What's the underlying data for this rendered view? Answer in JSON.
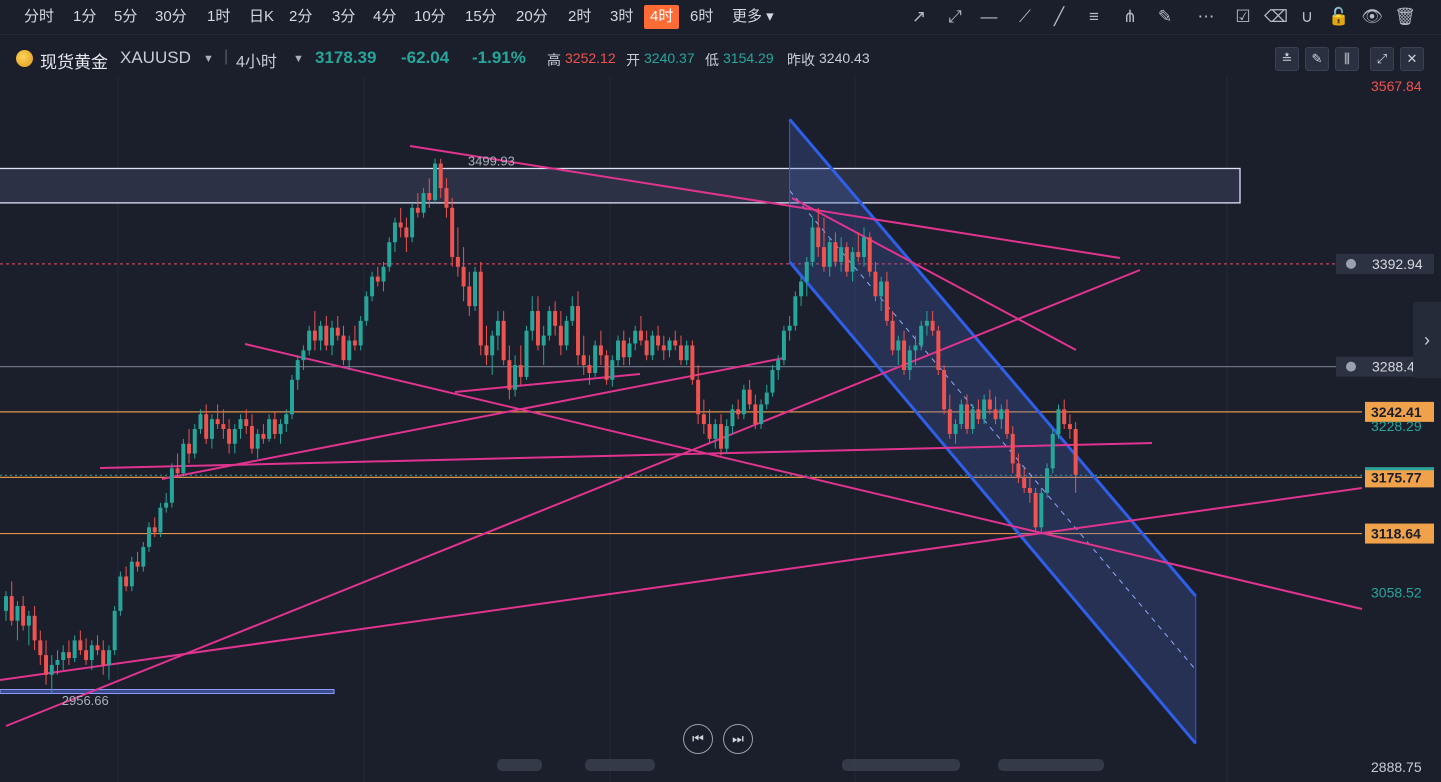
{
  "toolbar": {
    "timeframes": [
      "分时",
      "1分",
      "5分",
      "30分",
      "1时",
      "日K",
      "2分",
      "3分",
      "4分",
      "10分",
      "15分",
      "20分",
      "2时",
      "3时",
      "4时",
      "6时",
      "更多"
    ],
    "active": "4时",
    "tools": [
      "trend-line-icon",
      "ray-line-icon",
      "horizontal-line-icon",
      "polyline-icon",
      "brush-icon",
      "fibonacci-icon",
      "fan-icon",
      "highlighter-icon",
      "more-dots-icon",
      "note-icon",
      "eraser-icon",
      "magnet-icon",
      "lock-icon",
      "eye-icon",
      "trash-icon"
    ]
  },
  "symbol": {
    "name": "现货黄金",
    "code": "XAUUSD",
    "interval": "4小时",
    "price": "3178.39",
    "change": "-62.04",
    "change_pct": "-1.91%",
    "high_label": "高",
    "high": "3252.12",
    "open_label": "开",
    "open": "3240.37",
    "low_label": "低",
    "low": "3154.29",
    "prev_label": "昨收",
    "prev": "3240.43"
  },
  "colors": {
    "up": "#26a69a",
    "down": "#ef5350",
    "pink": "#e0348f",
    "channel": "#2f5fe8",
    "bg": "#1b1e2b"
  },
  "chart_data": {
    "type": "candlestick",
    "symbol": "XAUUSD",
    "interval": "4H",
    "ylim": [
      2870,
      3580
    ],
    "y_axis_labels": [
      {
        "value": 3567.84,
        "text": "3567.84",
        "kind": "top"
      },
      {
        "value": 3392.94,
        "text": "3392.94",
        "kind": "alert"
      },
      {
        "value": 3288.44,
        "text": "3288.44",
        "kind": "alert"
      },
      {
        "value": 3242.41,
        "text": "3242.41",
        "kind": "orange"
      },
      {
        "value": 3228.29,
        "text": "3228.29",
        "kind": "plain"
      },
      {
        "value": 3175.77,
        "text": "3175.77",
        "kind": "orange"
      },
      {
        "value": 3118.64,
        "text": "3118.64",
        "kind": "orange"
      },
      {
        "value": 3058.52,
        "text": "3058.52",
        "kind": "plain"
      },
      {
        "value": 2888.75,
        "text": "2888.75",
        "kind": "bottom"
      }
    ],
    "annotations": [
      {
        "text": "3499.93",
        "x_index": 79,
        "value": 3499.93
      },
      {
        "text": "2956.66",
        "x_index": 8,
        "value": 2956.66
      }
    ],
    "hlines": [
      {
        "value": 3392.94,
        "style": "dotted",
        "color": "#c0455f"
      },
      {
        "value": 3288.44,
        "style": "solid",
        "color": "#6c7182"
      },
      {
        "value": 3242.41,
        "style": "solid",
        "color": "#e0934a"
      },
      {
        "value": 3175.77,
        "style": "solid",
        "color": "#e0934a"
      },
      {
        "value": 3118.64,
        "style": "solid",
        "color": "#e0934a"
      }
    ],
    "candles": [
      [
        3040,
        3060,
        3030,
        3055
      ],
      [
        3055,
        3070,
        3025,
        3030
      ],
      [
        3030,
        3050,
        3010,
        3045
      ],
      [
        3045,
        3055,
        3020,
        3025
      ],
      [
        3025,
        3040,
        3005,
        3035
      ],
      [
        3035,
        3045,
        3000,
        3010
      ],
      [
        3010,
        3020,
        2985,
        2995
      ],
      [
        2995,
        3010,
        2965,
        2975
      ],
      [
        2975,
        2995,
        2956,
        2985
      ],
      [
        2985,
        3000,
        2975,
        2990
      ],
      [
        2990,
        3005,
        2980,
        2998
      ],
      [
        2998,
        3010,
        2985,
        2992
      ],
      [
        2992,
        3015,
        2988,
        3010
      ],
      [
        3010,
        3020,
        2995,
        3000
      ],
      [
        3000,
        3012,
        2985,
        2990
      ],
      [
        2990,
        3010,
        2980,
        3005
      ],
      [
        3005,
        3015,
        2995,
        3000
      ],
      [
        3000,
        3010,
        2975,
        2985
      ],
      [
        2985,
        3005,
        2970,
        3000
      ],
      [
        3000,
        3045,
        2995,
        3040
      ],
      [
        3040,
        3080,
        3035,
        3075
      ],
      [
        3075,
        3085,
        3060,
        3065
      ],
      [
        3065,
        3095,
        3060,
        3090
      ],
      [
        3090,
        3100,
        3080,
        3085
      ],
      [
        3085,
        3110,
        3080,
        3105
      ],
      [
        3105,
        3130,
        3100,
        3125
      ],
      [
        3125,
        3135,
        3115,
        3120
      ],
      [
        3120,
        3150,
        3115,
        3145
      ],
      [
        3145,
        3160,
        3140,
        3150
      ],
      [
        3150,
        3190,
        3145,
        3185
      ],
      [
        3185,
        3200,
        3175,
        3180
      ],
      [
        3180,
        3215,
        3175,
        3210
      ],
      [
        3210,
        3225,
        3190,
        3200
      ],
      [
        3200,
        3230,
        3195,
        3225
      ],
      [
        3225,
        3245,
        3220,
        3240
      ],
      [
        3240,
        3250,
        3210,
        3215
      ],
      [
        3215,
        3240,
        3205,
        3235
      ],
      [
        3235,
        3250,
        3225,
        3230
      ],
      [
        3230,
        3245,
        3215,
        3225
      ],
      [
        3225,
        3235,
        3200,
        3210
      ],
      [
        3210,
        3230,
        3200,
        3225
      ],
      [
        3225,
        3240,
        3215,
        3235
      ],
      [
        3235,
        3245,
        3220,
        3228
      ],
      [
        3228,
        3240,
        3200,
        3205
      ],
      [
        3205,
        3225,
        3195,
        3220
      ],
      [
        3220,
        3230,
        3210,
        3215
      ],
      [
        3215,
        3240,
        3212,
        3235
      ],
      [
        3235,
        3242,
        3215,
        3220
      ],
      [
        3220,
        3235,
        3210,
        3230
      ],
      [
        3230,
        3245,
        3222,
        3240
      ],
      [
        3240,
        3280,
        3235,
        3275
      ],
      [
        3275,
        3300,
        3265,
        3295
      ],
      [
        3295,
        3310,
        3285,
        3305
      ],
      [
        3305,
        3330,
        3300,
        3325
      ],
      [
        3325,
        3345,
        3305,
        3315
      ],
      [
        3315,
        3335,
        3305,
        3330
      ],
      [
        3330,
        3340,
        3305,
        3310
      ],
      [
        3310,
        3335,
        3300,
        3328
      ],
      [
        3328,
        3340,
        3315,
        3320
      ],
      [
        3320,
        3330,
        3290,
        3295
      ],
      [
        3295,
        3320,
        3285,
        3315
      ],
      [
        3315,
        3330,
        3305,
        3310
      ],
      [
        3310,
        3340,
        3305,
        3335
      ],
      [
        3335,
        3365,
        3330,
        3360
      ],
      [
        3360,
        3385,
        3355,
        3380
      ],
      [
        3380,
        3390,
        3370,
        3375
      ],
      [
        3375,
        3395,
        3365,
        3390
      ],
      [
        3390,
        3420,
        3385,
        3415
      ],
      [
        3415,
        3440,
        3405,
        3435
      ],
      [
        3435,
        3450,
        3420,
        3430
      ],
      [
        3430,
        3440,
        3405,
        3420
      ],
      [
        3420,
        3455,
        3415,
        3450
      ],
      [
        3450,
        3465,
        3440,
        3445
      ],
      [
        3445,
        3470,
        3440,
        3465
      ],
      [
        3465,
        3480,
        3450,
        3458
      ],
      [
        3458,
        3500,
        3455,
        3495
      ],
      [
        3495,
        3499.93,
        3460,
        3470
      ],
      [
        3470,
        3480,
        3440,
        3450
      ],
      [
        3450,
        3460,
        3390,
        3400
      ],
      [
        3400,
        3430,
        3380,
        3390
      ],
      [
        3390,
        3410,
        3355,
        3370
      ],
      [
        3370,
        3385,
        3340,
        3350
      ],
      [
        3350,
        3390,
        3345,
        3385
      ],
      [
        3385,
        3395,
        3300,
        3310
      ],
      [
        3310,
        3330,
        3290,
        3300
      ],
      [
        3300,
        3325,
        3280,
        3320
      ],
      [
        3320,
        3345,
        3305,
        3335
      ],
      [
        3335,
        3345,
        3290,
        3295
      ],
      [
        3295,
        3310,
        3255,
        3265
      ],
      [
        3265,
        3300,
        3258,
        3290
      ],
      [
        3290,
        3310,
        3270,
        3278
      ],
      [
        3278,
        3330,
        3275,
        3325
      ],
      [
        3325,
        3360,
        3315,
        3345
      ],
      [
        3345,
        3360,
        3305,
        3310
      ],
      [
        3310,
        3330,
        3290,
        3320
      ],
      [
        3320,
        3350,
        3315,
        3345
      ],
      [
        3345,
        3355,
        3320,
        3330
      ],
      [
        3330,
        3345,
        3300,
        3310
      ],
      [
        3310,
        3340,
        3305,
        3335
      ],
      [
        3335,
        3360,
        3330,
        3350
      ],
      [
        3350,
        3365,
        3290,
        3300
      ],
      [
        3300,
        3320,
        3280,
        3290
      ],
      [
        3290,
        3300,
        3270,
        3282
      ],
      [
        3282,
        3315,
        3278,
        3310
      ],
      [
        3310,
        3325,
        3290,
        3300
      ],
      [
        3300,
        3305,
        3270,
        3275
      ],
      [
        3275,
        3300,
        3268,
        3295
      ],
      [
        3295,
        3320,
        3288,
        3315
      ],
      [
        3315,
        3325,
        3290,
        3298
      ],
      [
        3298,
        3318,
        3290,
        3312
      ],
      [
        3312,
        3330,
        3305,
        3325
      ],
      [
        3325,
        3340,
        3310,
        3315
      ],
      [
        3315,
        3325,
        3295,
        3300
      ],
      [
        3300,
        3325,
        3295,
        3320
      ],
      [
        3320,
        3330,
        3305,
        3310
      ],
      [
        3310,
        3320,
        3295,
        3305
      ],
      [
        3305,
        3318,
        3298,
        3315
      ],
      [
        3315,
        3325,
        3305,
        3310
      ],
      [
        3310,
        3320,
        3290,
        3295
      ],
      [
        3295,
        3315,
        3290,
        3310
      ],
      [
        3310,
        3315,
        3270,
        3275
      ],
      [
        3275,
        3290,
        3230,
        3240
      ],
      [
        3240,
        3255,
        3220,
        3230
      ],
      [
        3230,
        3245,
        3210,
        3215
      ],
      [
        3215,
        3235,
        3205,
        3230
      ],
      [
        3230,
        3240,
        3198,
        3205
      ],
      [
        3205,
        3235,
        3200,
        3228
      ],
      [
        3228,
        3250,
        3220,
        3245
      ],
      [
        3245,
        3255,
        3235,
        3240
      ],
      [
        3240,
        3270,
        3235,
        3265
      ],
      [
        3265,
        3275,
        3245,
        3250
      ],
      [
        3250,
        3260,
        3225,
        3230
      ],
      [
        3230,
        3255,
        3225,
        3250
      ],
      [
        3250,
        3270,
        3245,
        3262
      ],
      [
        3262,
        3290,
        3258,
        3285
      ],
      [
        3285,
        3300,
        3275,
        3295
      ],
      [
        3295,
        3330,
        3290,
        3325
      ],
      [
        3325,
        3340,
        3315,
        3330
      ],
      [
        3330,
        3365,
        3325,
        3360
      ],
      [
        3360,
        3380,
        3350,
        3375
      ],
      [
        3375,
        3400,
        3360,
        3395
      ],
      [
        3395,
        3440,
        3390,
        3430
      ],
      [
        3430,
        3450,
        3400,
        3410
      ],
      [
        3410,
        3440,
        3385,
        3390
      ],
      [
        3390,
        3420,
        3380,
        3415
      ],
      [
        3415,
        3425,
        3390,
        3395
      ],
      [
        3395,
        3420,
        3385,
        3410
      ],
      [
        3410,
        3415,
        3380,
        3385
      ],
      [
        3385,
        3410,
        3375,
        3405
      ],
      [
        3405,
        3425,
        3395,
        3400
      ],
      [
        3400,
        3430,
        3390,
        3420
      ],
      [
        3420,
        3425,
        3380,
        3385
      ],
      [
        3385,
        3395,
        3355,
        3360
      ],
      [
        3360,
        3380,
        3345,
        3375
      ],
      [
        3375,
        3385,
        3330,
        3335
      ],
      [
        3335,
        3345,
        3300,
        3305
      ],
      [
        3305,
        3320,
        3290,
        3315
      ],
      [
        3315,
        3325,
        3280,
        3285
      ],
      [
        3285,
        3310,
        3275,
        3305
      ],
      [
        3305,
        3320,
        3290,
        3310
      ],
      [
        3310,
        3335,
        3305,
        3330
      ],
      [
        3330,
        3345,
        3320,
        3335
      ],
      [
        3335,
        3345,
        3320,
        3325
      ],
      [
        3325,
        3330,
        3280,
        3285
      ],
      [
        3285,
        3290,
        3240,
        3245
      ],
      [
        3245,
        3260,
        3215,
        3220
      ],
      [
        3220,
        3235,
        3210,
        3230
      ],
      [
        3230,
        3255,
        3225,
        3250
      ],
      [
        3250,
        3260,
        3220,
        3225
      ],
      [
        3225,
        3250,
        3220,
        3245
      ],
      [
        3245,
        3255,
        3230,
        3235
      ],
      [
        3235,
        3260,
        3230,
        3255
      ],
      [
        3255,
        3265,
        3240,
        3245
      ],
      [
        3245,
        3258,
        3230,
        3235
      ],
      [
        3235,
        3250,
        3225,
        3245
      ],
      [
        3245,
        3255,
        3215,
        3220
      ],
      [
        3220,
        3228,
        3180,
        3190
      ],
      [
        3190,
        3200,
        3170,
        3175
      ],
      [
        3175,
        3185,
        3160,
        3165
      ],
      [
        3165,
        3175,
        3150,
        3160
      ],
      [
        3160,
        3165,
        3120,
        3125
      ],
      [
        3125,
        3165,
        3120,
        3160
      ],
      [
        3160,
        3190,
        3155,
        3185
      ],
      [
        3185,
        3225,
        3180,
        3220
      ],
      [
        3220,
        3250,
        3215,
        3245
      ],
      [
        3245,
        3255,
        3225,
        3230
      ],
      [
        3230,
        3240,
        3215,
        3225
      ],
      [
        3225,
        3232,
        3160,
        3178.39
      ]
    ],
    "trendlines": [
      {
        "from": [
          -1,
          3455
        ],
        "to": [
          228,
          3453
        ],
        "color": "#c8cce8",
        "type": "zone-top"
      },
      {
        "from": [
          -1,
          3490
        ],
        "to": [
          228,
          3490
        ],
        "color": "#c8cce8",
        "type": "zone-bottom"
      }
    ]
  }
}
